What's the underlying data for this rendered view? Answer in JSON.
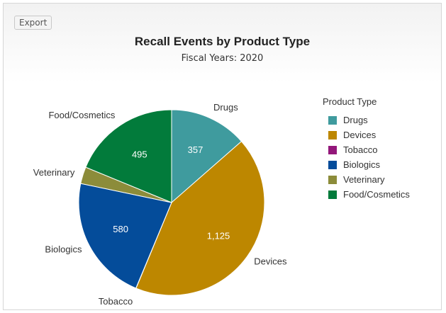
{
  "export_label": "Export",
  "chart_data": {
    "type": "pie",
    "title": "Recall Events by Product Type",
    "subtitle": "Fiscal Years: 2020",
    "legend_title": "Product Type",
    "legend_position": "right",
    "slices": [
      {
        "label": "Drugs",
        "value": 357,
        "value_label": "357",
        "color": "#3f9b9e"
      },
      {
        "label": "Devices",
        "value": 1125,
        "value_label": "1,125",
        "color": "#bd8700"
      },
      {
        "label": "Tobacco",
        "value": 1,
        "value_label": "",
        "color": "#93177a"
      },
      {
        "label": "Biologics",
        "value": 580,
        "value_label": "580",
        "color": "#044c9a"
      },
      {
        "label": "Veterinary",
        "value": 77,
        "value_label": "",
        "color": "#8c8c3a"
      },
      {
        "label": "Food/Cosmetics",
        "value": 495,
        "value_label": "495",
        "color": "#027b3b"
      }
    ]
  }
}
